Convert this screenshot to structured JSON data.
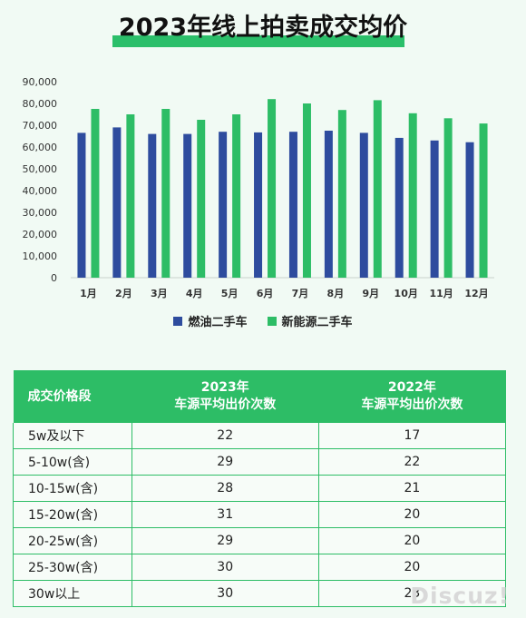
{
  "title": "2023年线上拍卖成交均价",
  "chart_data": {
    "type": "bar",
    "categories": [
      "1月",
      "2月",
      "3月",
      "4月",
      "5月",
      "6月",
      "7月",
      "8月",
      "9月",
      "10月",
      "11月",
      "12月"
    ],
    "series": [
      {
        "name": "燃油二手车",
        "color": "#2e4c9e",
        "values": [
          66500,
          69000,
          66000,
          66000,
          67000,
          66700,
          67000,
          67500,
          66500,
          64200,
          63000,
          62200
        ]
      },
      {
        "name": "新能源二手车",
        "color": "#2dbd66",
        "values": [
          77500,
          75000,
          77500,
          72500,
          75000,
          82000,
          80000,
          77000,
          81500,
          75500,
          73200,
          70800
        ]
      }
    ],
    "ylim": [
      0,
      90000
    ],
    "yticks": [
      "0",
      "10,000",
      "20,000",
      "30,000",
      "40,000",
      "50,000",
      "60,000",
      "70,000",
      "80,000",
      "90,000"
    ],
    "grid": false,
    "legend_position": "bottom"
  },
  "table": {
    "headers": [
      {
        "line1": "成交价格段",
        "line2": ""
      },
      {
        "line1": "2023年",
        "line2": "车源平均出价次数"
      },
      {
        "line1": "2022年",
        "line2": "车源平均出价次数"
      }
    ],
    "rows": [
      [
        "5w及以下",
        "22",
        "17"
      ],
      [
        "5-10w(含)",
        "29",
        "22"
      ],
      [
        "10-15w(含)",
        "28",
        "21"
      ],
      [
        "15-20w(含)",
        "31",
        "20"
      ],
      [
        "20-25w(含)",
        "29",
        "20"
      ],
      [
        "25-30w(含)",
        "30",
        "20"
      ],
      [
        "30w以上",
        "30",
        "23"
      ]
    ]
  },
  "watermark": "Discuz!"
}
